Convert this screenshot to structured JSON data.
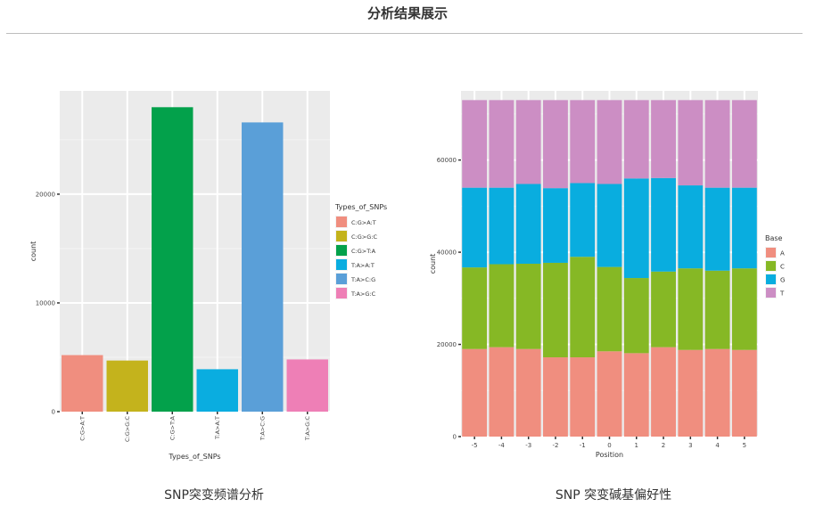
{
  "header": {
    "title": "分析结果展示"
  },
  "captions": {
    "left": "SNP突变频谱分析",
    "right": "SNP 突变碱基偏好性"
  },
  "chart_data": [
    {
      "type": "bar",
      "title": "",
      "xlabel": "Types_of_SNPs",
      "ylabel": "count",
      "ylim": [
        0,
        29500
      ],
      "yticks": [
        0,
        10000,
        20000
      ],
      "ytick_labels": [
        "0",
        "10000",
        "20000"
      ],
      "categories": [
        "C:G>A:T",
        "C:G>G:C",
        "C:G>T:A",
        "T:A>A:T",
        "T:A>C:G",
        "T:A>G:C"
      ],
      "values": [
        5200,
        4700,
        28000,
        3900,
        26600,
        4800
      ],
      "colors": [
        "#F08E7F",
        "#C4B31C",
        "#03A14B",
        "#0AADE0",
        "#5A9FD8",
        "#EE7FB6"
      ],
      "grid": true,
      "legend": {
        "title": "Types_of_SNPs",
        "placement": "right",
        "entries": [
          "C:G>A:T",
          "C:G>G:C",
          "C:G>T:A",
          "T:A>A:T",
          "T:A>C:G",
          "T:A>G:C"
        ]
      }
    },
    {
      "type": "bar",
      "stacked": true,
      "title": "",
      "xlabel": "Position",
      "ylabel": "count",
      "ylim": [
        0,
        75000
      ],
      "yticks": [
        0,
        20000,
        40000,
        60000
      ],
      "ytick_labels": [
        "0",
        "20000",
        "40000",
        "60000"
      ],
      "categories": [
        "-5",
        "-4",
        "-3",
        "-2",
        "-1",
        "0",
        "1",
        "2",
        "3",
        "4",
        "5"
      ],
      "series": [
        {
          "name": "A",
          "color": "#F08E7F",
          "values": [
            19000,
            19400,
            19000,
            17200,
            17200,
            18500,
            18100,
            19400,
            18800,
            19000,
            18800
          ]
        },
        {
          "name": "C",
          "color": "#86B825",
          "values": [
            17700,
            18000,
            18500,
            20500,
            21800,
            18300,
            16300,
            16400,
            17700,
            17000,
            17700
          ]
        },
        {
          "name": "G",
          "color": "#09ADDF",
          "values": [
            17300,
            16600,
            17300,
            16200,
            16000,
            18000,
            21600,
            20300,
            18000,
            18000,
            17500
          ]
        },
        {
          "name": "T",
          "color": "#CC8EC4",
          "values": [
            19000,
            19000,
            18200,
            19100,
            18000,
            18200,
            17000,
            16900,
            18500,
            19000,
            19000
          ]
        }
      ],
      "grid": true,
      "legend": {
        "title": "Base",
        "placement": "right",
        "entries": [
          "A",
          "C",
          "G",
          "T"
        ]
      }
    }
  ]
}
